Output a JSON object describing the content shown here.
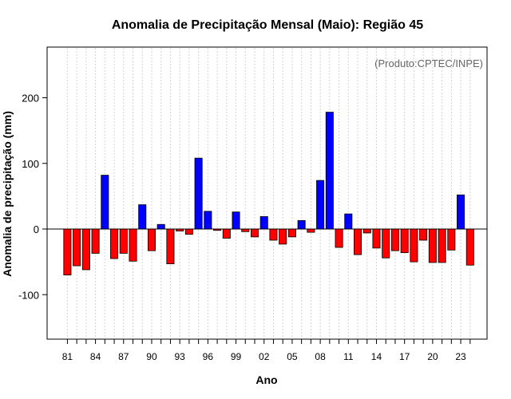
{
  "chart_data": {
    "type": "bar",
    "title": "Anomalia de Precipitação Mensal (Maio): Região 45",
    "xlabel": "Ano",
    "ylabel": "Anomalia de precipitação (mm)",
    "annotation": "(Produto:CPTEC/INPE)",
    "ylim": [
      -170,
      280
    ],
    "yticks": [
      -100,
      0,
      100,
      200
    ],
    "xtick_labels": [
      "81",
      "84",
      "87",
      "90",
      "93",
      "96",
      "99",
      "02",
      "05",
      "08",
      "11",
      "14",
      "17",
      "20",
      "23"
    ],
    "xtick_years": [
      1981,
      1984,
      1987,
      1990,
      1993,
      1996,
      1999,
      2002,
      2005,
      2008,
      2011,
      2014,
      2017,
      2020,
      2023
    ],
    "grid": true,
    "colors": {
      "positive": "#0000ff",
      "negative": "#ff0000",
      "edge": "#000000",
      "grid": "#d3d3d3",
      "credit": "#666666"
    },
    "years": [
      1981,
      1982,
      1983,
      1984,
      1985,
      1986,
      1987,
      1988,
      1989,
      1990,
      1991,
      1992,
      1993,
      1994,
      1995,
      1996,
      1997,
      1998,
      1999,
      2000,
      2001,
      2002,
      2003,
      2004,
      2005,
      2006,
      2007,
      2008,
      2009,
      2010,
      2011,
      2012,
      2013,
      2014,
      2015,
      2016,
      2017,
      2018,
      2019,
      2020,
      2021,
      2022,
      2023,
      2024
    ],
    "values": [
      -70,
      -56,
      -62,
      -37,
      82,
      -45,
      -37,
      -49,
      37,
      -33,
      7,
      -53,
      -3,
      -8,
      108,
      27,
      -2,
      -14,
      26,
      -4,
      -12,
      19,
      -17,
      -23,
      -12,
      13,
      -5,
      74,
      178,
      -28,
      23,
      -39,
      -6,
      -29,
      -44,
      -33,
      -36,
      -50,
      -17,
      -51,
      -51,
      -32,
      52,
      -55
    ]
  }
}
